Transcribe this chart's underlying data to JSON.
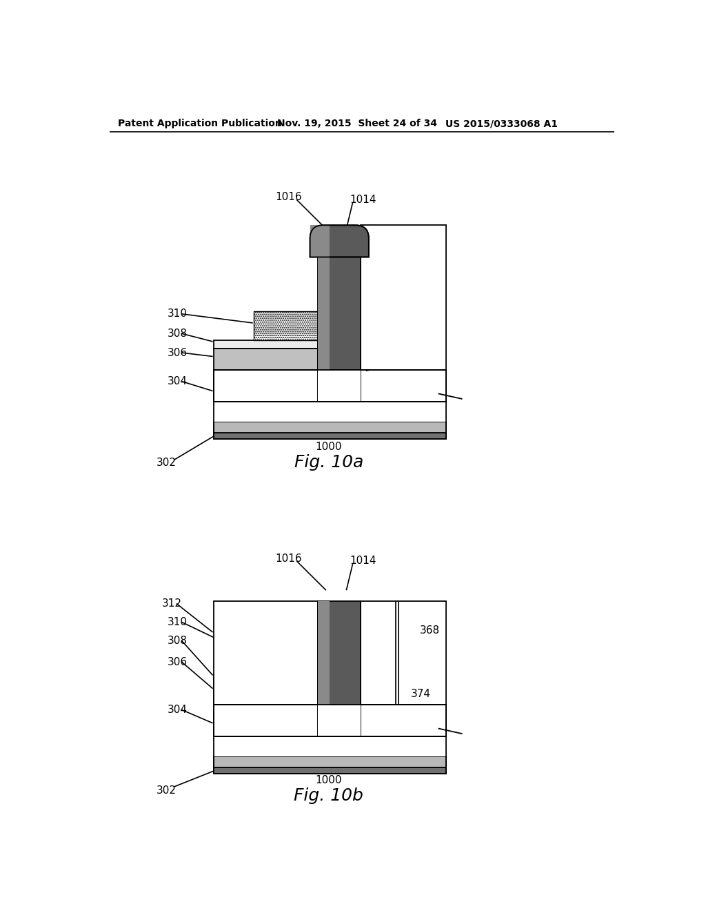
{
  "header_left": "Patent Application Publication",
  "header_mid": "Nov. 19, 2015  Sheet 24 of 34",
  "header_right": "US 2015/0333068 A1",
  "fig_a_label": "Fig. 10a",
  "fig_b_label": "Fig. 10b",
  "label_1000a": "1000",
  "label_1000b": "1000",
  "background": "#ffffff",
  "color_dark_gray": "#5a5a5a",
  "color_mid_gray": "#888888",
  "color_light_gray": "#c8c8c8",
  "color_very_light_gray": "#e0e0e0",
  "color_white": "#ffffff",
  "color_black": "#000000",
  "color_substrate_dark": "#606060",
  "color_layer304": "#a0a0a0"
}
